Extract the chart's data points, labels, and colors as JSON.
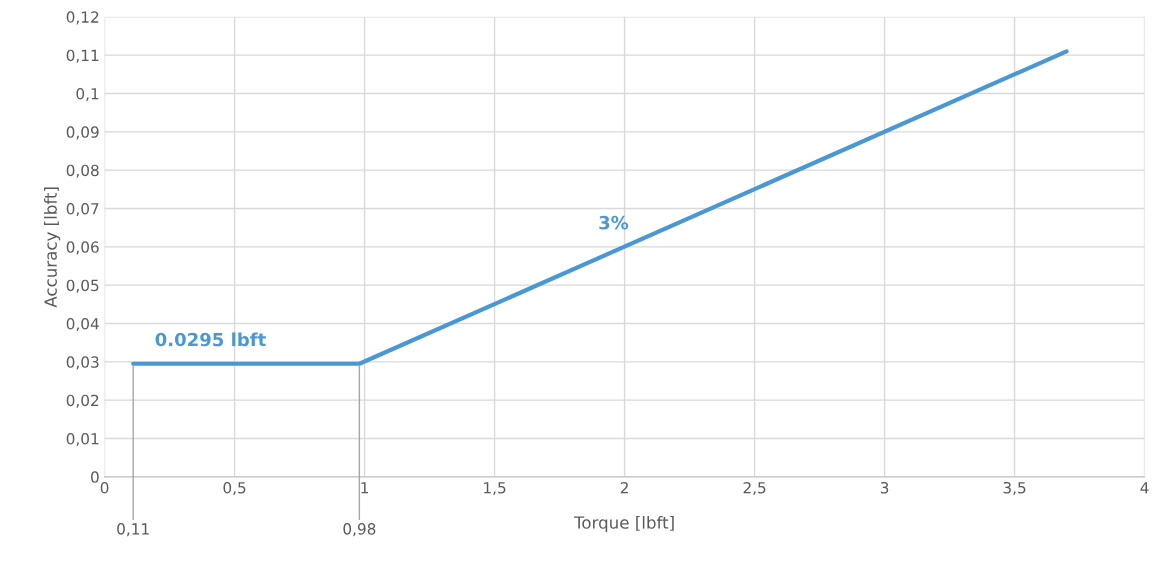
{
  "chart_data": {
    "type": "line",
    "xlabel": "Torque [lbft]",
    "ylabel": "Accuracy [lbft]",
    "x": [
      0.11,
      0.98,
      3.7
    ],
    "series": [
      {
        "color": "#4a98d3",
        "values": [
          0.0295,
          0.0295,
          0.111
        ]
      }
    ],
    "xlim": [
      0,
      4
    ],
    "ylim": [
      0,
      0.12
    ],
    "xticks": [
      0,
      {
        "value": 0.5,
        "label": "0,5"
      },
      1,
      {
        "value": 1.5,
        "label": "1,5"
      },
      2,
      {
        "value": 2.5,
        "label": "2,5"
      },
      3,
      {
        "value": 3.5,
        "label": "3,5"
      },
      4
    ],
    "yticks": [
      0,
      {
        "value": 0.01,
        "label": "0,01"
      },
      {
        "value": 0.02,
        "label": "0,02"
      },
      {
        "value": 0.03,
        "label": "0,03"
      },
      {
        "value": 0.04,
        "label": "0,04"
      },
      {
        "value": 0.05,
        "label": "0,05"
      },
      {
        "value": 0.06,
        "label": "0,06"
      },
      {
        "value": 0.07,
        "label": "0,07"
      },
      {
        "value": 0.08,
        "label": "0,08"
      },
      {
        "value": 0.09,
        "label": "0,09"
      },
      {
        "value": 0.1,
        "label": "0,1"
      },
      {
        "value": 0.11,
        "label": "0,11"
      },
      {
        "value": 0.12,
        "label": "0,12"
      }
    ],
    "annotations": [
      {
        "text": "0.0295 lbft",
        "x": 0.45,
        "y": 0.0295
      },
      {
        "text": "3%",
        "x": 2.0,
        "y": 0.06
      },
      {
        "text": "0,11",
        "x": 0.11,
        "y": 0.0295
      },
      {
        "text": "0,98",
        "x": 0.98,
        "y": 0.0295
      }
    ],
    "grid": true,
    "marker": "none",
    "line_style": "solid",
    "legend": false
  }
}
